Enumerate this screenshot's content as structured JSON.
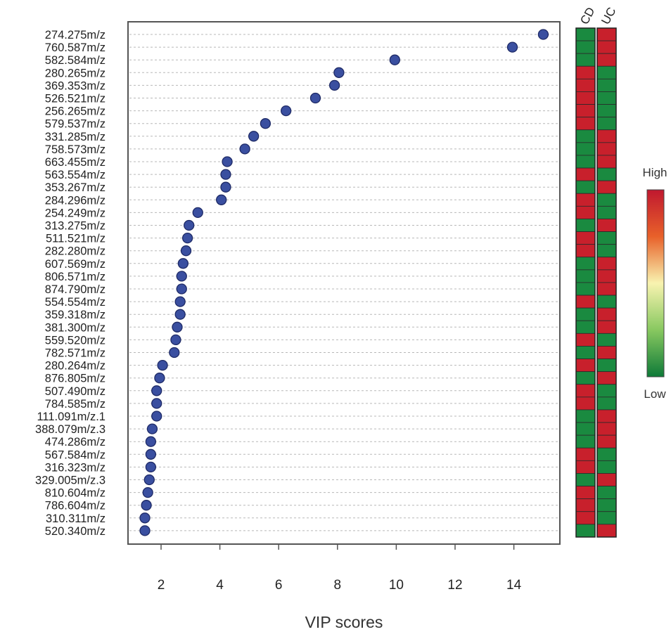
{
  "chart_data": {
    "type": "scatter",
    "xlabel": "VIP scores",
    "xlim": [
      1.1,
      15.6
    ],
    "xticks": [
      2,
      4,
      6,
      8,
      10,
      12,
      14
    ],
    "grid": "horizontal-dashed",
    "point_color": "#3a4fa0",
    "features": [
      {
        "name": "274.275m/z",
        "vip": 15.0,
        "CD": "low",
        "UC": "high"
      },
      {
        "name": "760.587m/z",
        "vip": 13.95,
        "CD": "low",
        "UC": "high"
      },
      {
        "name": "582.584m/z",
        "vip": 9.95,
        "CD": "low",
        "UC": "high"
      },
      {
        "name": "280.265m/z",
        "vip": 8.05,
        "CD": "high",
        "UC": "low"
      },
      {
        "name": "369.353m/z",
        "vip": 7.9,
        "CD": "high",
        "UC": "low"
      },
      {
        "name": "526.521m/z",
        "vip": 7.25,
        "CD": "high",
        "UC": "low"
      },
      {
        "name": "256.265m/z",
        "vip": 6.25,
        "CD": "high",
        "UC": "low"
      },
      {
        "name": "579.537m/z",
        "vip": 5.55,
        "CD": "high",
        "UC": "low"
      },
      {
        "name": "331.285m/z",
        "vip": 5.15,
        "CD": "low",
        "UC": "high"
      },
      {
        "name": "758.573m/z",
        "vip": 4.85,
        "CD": "low",
        "UC": "high"
      },
      {
        "name": "663.455m/z",
        "vip": 4.25,
        "CD": "low",
        "UC": "high"
      },
      {
        "name": "563.554m/z",
        "vip": 4.2,
        "CD": "high",
        "UC": "low"
      },
      {
        "name": "353.267m/z",
        "vip": 4.2,
        "CD": "low",
        "UC": "high"
      },
      {
        "name": "284.296m/z",
        "vip": 4.05,
        "CD": "high",
        "UC": "low"
      },
      {
        "name": "254.249m/z",
        "vip": 3.25,
        "CD": "high",
        "UC": "low"
      },
      {
        "name": "313.275m/z",
        "vip": 2.95,
        "CD": "low",
        "UC": "high"
      },
      {
        "name": "511.521m/z",
        "vip": 2.9,
        "CD": "high",
        "UC": "low"
      },
      {
        "name": "282.280m/z",
        "vip": 2.85,
        "CD": "high",
        "UC": "low"
      },
      {
        "name": "607.569m/z",
        "vip": 2.75,
        "CD": "low",
        "UC": "high"
      },
      {
        "name": "806.571m/z",
        "vip": 2.7,
        "CD": "low",
        "UC": "high"
      },
      {
        "name": "874.790m/z",
        "vip": 2.7,
        "CD": "low",
        "UC": "high"
      },
      {
        "name": "554.554m/z",
        "vip": 2.65,
        "CD": "high",
        "UC": "low"
      },
      {
        "name": "359.318m/z",
        "vip": 2.65,
        "CD": "low",
        "UC": "high"
      },
      {
        "name": "381.300m/z",
        "vip": 2.55,
        "CD": "low",
        "UC": "high"
      },
      {
        "name": "559.520m/z",
        "vip": 2.5,
        "CD": "high",
        "UC": "low"
      },
      {
        "name": "782.571m/z",
        "vip": 2.45,
        "CD": "low",
        "UC": "high"
      },
      {
        "name": "280.264m/z",
        "vip": 2.05,
        "CD": "high",
        "UC": "low"
      },
      {
        "name": "876.805m/z",
        "vip": 1.95,
        "CD": "low",
        "UC": "high"
      },
      {
        "name": "507.490m/z",
        "vip": 1.85,
        "CD": "high",
        "UC": "low"
      },
      {
        "name": "784.585m/z",
        "vip": 1.85,
        "CD": "high",
        "UC": "low"
      },
      {
        "name": "111.091m/z.1",
        "vip": 1.85,
        "CD": "low",
        "UC": "high"
      },
      {
        "name": "388.079m/z.3",
        "vip": 1.7,
        "CD": "low",
        "UC": "high"
      },
      {
        "name": "474.286m/z",
        "vip": 1.65,
        "CD": "low",
        "UC": "high"
      },
      {
        "name": "567.584m/z",
        "vip": 1.65,
        "CD": "high",
        "UC": "low"
      },
      {
        "name": "316.323m/z",
        "vip": 1.65,
        "CD": "high",
        "UC": "low"
      },
      {
        "name": "329.005m/z.3",
        "vip": 1.6,
        "CD": "low",
        "UC": "high"
      },
      {
        "name": "810.604m/z",
        "vip": 1.55,
        "CD": "high",
        "UC": "low"
      },
      {
        "name": "786.604m/z",
        "vip": 1.5,
        "CD": "high",
        "UC": "low"
      },
      {
        "name": "310.311m/z",
        "vip": 1.45,
        "CD": "high",
        "UC": "low"
      },
      {
        "name": "520.340m/z",
        "vip": 1.45,
        "CD": "low",
        "UC": "high"
      }
    ],
    "heatmap": {
      "columns": [
        "CD",
        "UC"
      ],
      "high_color": "#c8202c",
      "low_color": "#1a8a40"
    },
    "colorbar": {
      "high_label": "High",
      "low_label": "Low",
      "stops": [
        "#c0182f",
        "#e8612a",
        "#f8f3b0",
        "#88c860",
        "#0e7a38"
      ]
    }
  }
}
